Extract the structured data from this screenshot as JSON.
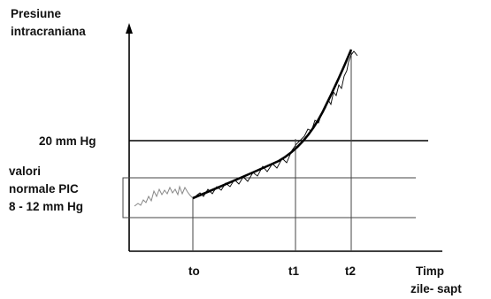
{
  "y_axis_label": [
    "Presiune",
    "intracraniana"
  ],
  "x_axis_label": [
    "Timp",
    "zile- sapt"
  ],
  "reference_line_label": "20 mm Hg",
  "normal_range_label": [
    "valori",
    "normale PIC",
    "8 - 12 mm Hg"
  ],
  "time_markers": [
    "to",
    "t1",
    "t2"
  ],
  "colors": {
    "axis": "#000000",
    "curve": "#000000",
    "baseline_trace": "#888888",
    "guide": "#555555",
    "text": "#111111"
  }
}
